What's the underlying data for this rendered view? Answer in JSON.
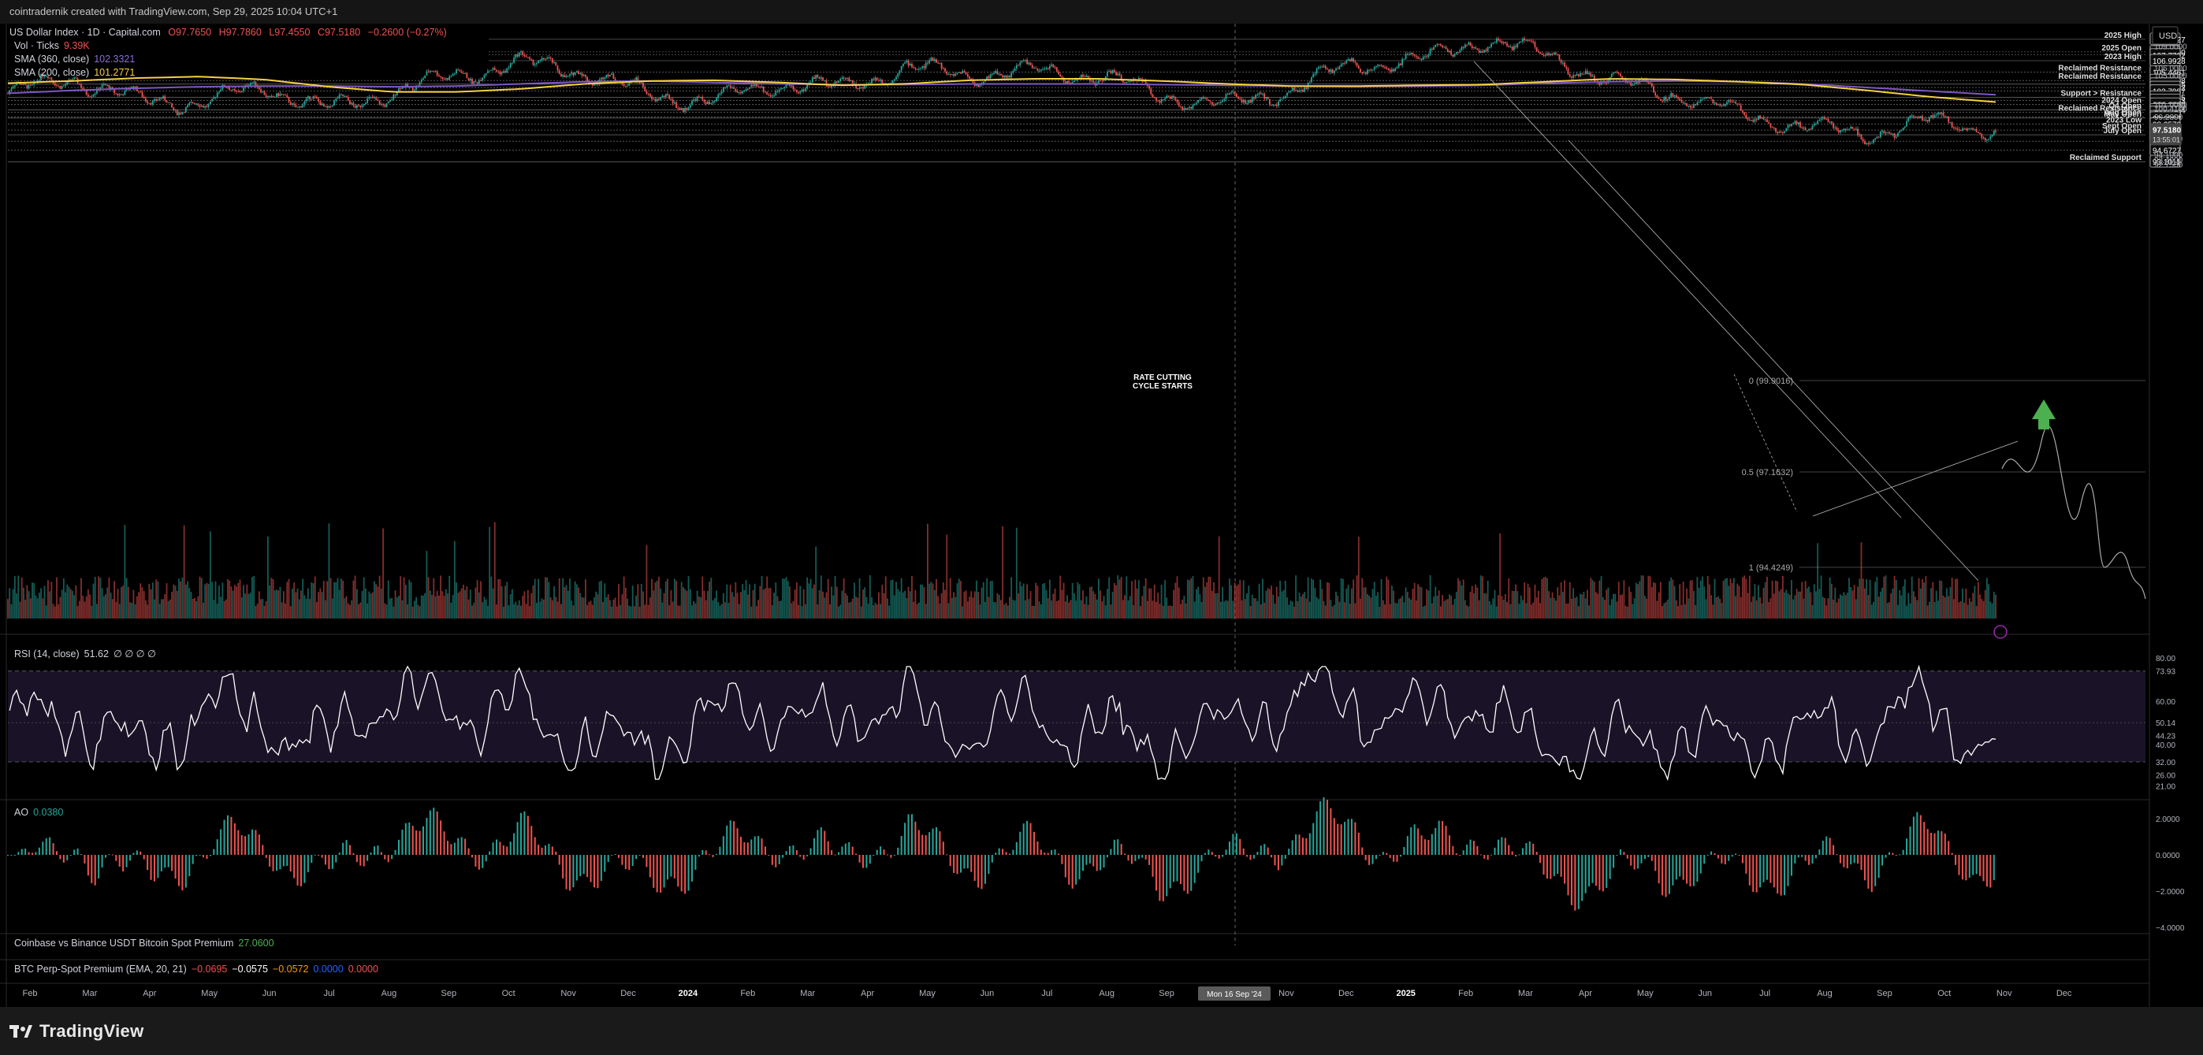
{
  "header": {
    "attribution": "cointradernik created with TradingView.com, Sep 29, 2025 10:04 UTC+1"
  },
  "legend": {
    "title": "US Dollar Index · 1D · Capital.com",
    "ohlc": {
      "o": "O97.7650",
      "h": "H97.7860",
      "l": "L97.4550",
      "c": "C97.5180",
      "chg": "−0.2600 (−0.27%)"
    },
    "vol": {
      "label": "Vol · Ticks",
      "value": "9.39K"
    },
    "sma360": {
      "label": "SMA (360, close)",
      "value": "102.3321"
    },
    "sma200": {
      "label": "SMA (200, close)",
      "value": "101.2771"
    }
  },
  "currency": "USD",
  "rsi_legend": {
    "label": "RSI (14, close)",
    "value": "51.62",
    "extras": "∅ ∅ ∅ ∅"
  },
  "ao_legend": {
    "label": "AO",
    "value": "0.0380"
  },
  "premium_legend": {
    "label": "Coinbase vs Binance USDT Bitcoin Spot Premium",
    "value": "27.0600"
  },
  "btc_legend": {
    "label": "BTC Perp-Spot Premium (EMA, 20, 21)",
    "v1": "−0.0695",
    "v2": "−0.0575",
    "v3": "−0.0572",
    "v4": "0.0000",
    "v5": "0.0000"
  },
  "colors": {
    "bull": "#26a69a",
    "bear": "#ef5350",
    "sma360": "#7e57c2",
    "sma200": "#f5d142",
    "rsi": "#ffffff",
    "accent": "#4caf50",
    "purple": "#9c27b0"
  },
  "footer": {
    "brand": "TradingView"
  },
  "annotations": {
    "rate_cutting_line1": "RATE CUTTING",
    "rate_cutting_line2": "CYCLE STARTS",
    "fib_0": "0 (99.9016)",
    "fib_05": "0.5 (97.1632)",
    "fib_1": "1 (94.4249)",
    "crosshair_date": "Mon 16 Sep '24"
  },
  "chart_data": {
    "type": "candlestick",
    "symbol": "US Dollar Index",
    "timeframe": "1D",
    "x_axis_labels": [
      "Feb",
      "Mar",
      "Apr",
      "May",
      "Jun",
      "Jul",
      "Aug",
      "Sep",
      "Oct",
      "Nov",
      "Dec",
      "2024",
      "Feb",
      "Mar",
      "Apr",
      "May",
      "Jun",
      "Jul",
      "Aug",
      "Sep",
      "Oct",
      "Nov",
      "Dec",
      "2025",
      "Feb",
      "Mar",
      "Apr",
      "May",
      "Jun",
      "Jul",
      "Aug",
      "Sep",
      "Oct",
      "Nov",
      "Dec"
    ],
    "y_axis_price_ticks": [
      "109.0000",
      "106.0000",
      "105.0000",
      "101.0000",
      "100.4100",
      "99.2800",
      "96.3000",
      "94.1000",
      "93.4000",
      "92.7500"
    ],
    "horizontal_levels": [
      {
        "label": "2025 High",
        "value": 109.9327
      },
      {
        "label": "2025 Open",
        "value": 108.2
      },
      {
        "label": "",
        "value": 107.7792
      },
      {
        "label": "2023 High",
        "value": 106.9928
      },
      {
        "label": "Reclaimed Resistance",
        "value": 105.4461
      },
      {
        "label": "Reclaimed Resistance",
        "value": 104.2598
      },
      {
        "label": "",
        "value": 103.7635
      },
      {
        "label": "",
        "value": 103.2992
      },
      {
        "label": "",
        "value": 102.7987
      },
      {
        "label": "Support > Resistance",
        "value": 101.9685
      },
      {
        "label": "",
        "value": 101.5163
      },
      {
        "label": "2024 Open",
        "value": 101.0
      },
      {
        "label": "Q4 Open",
        "value": 100.2194
      },
      {
        "label": "Reclaimed Resistance",
        "value": 99.87
      },
      {
        "label": "Aug Open",
        "value": 99.28
      },
      {
        "label": "May Open",
        "value": 99.0967
      },
      {
        "label": "2023 Low",
        "value": 98.2579
      },
      {
        "label": "Sept Open",
        "value": 97.4465
      },
      {
        "label": "July Open",
        "value": 96.7989
      },
      {
        "label": "",
        "value": 95.9113
      },
      {
        "label": "",
        "value": 94.6727
      },
      {
        "label": "Reclaimed Support",
        "value": 93.1011
      }
    ],
    "last_price": {
      "value": 97.518,
      "countdown": "13:55:01"
    },
    "price_path_monthly": [
      {
        "x": "Feb 2023",
        "y": 102.5
      },
      {
        "x": "Mar 2023",
        "y": 104.6
      },
      {
        "x": "Apr 2023",
        "y": 101.6
      },
      {
        "x": "May 2023",
        "y": 101.2
      },
      {
        "x": "Jun 2023",
        "y": 103.4
      },
      {
        "x": "Jul 2023",
        "y": 100.2
      },
      {
        "x": "Aug 2023",
        "y": 102.7
      },
      {
        "x": "Sep 2023",
        "y": 105.0
      },
      {
        "x": "Oct 2023",
        "y": 106.7
      },
      {
        "x": "Nov 2023",
        "y": 105.5
      },
      {
        "x": "Dec 2023",
        "y": 102.2
      },
      {
        "x": "Jan 2024",
        "y": 101.4
      },
      {
        "x": "Feb 2024",
        "y": 103.9
      },
      {
        "x": "Mar 2024",
        "y": 103.3
      },
      {
        "x": "Apr 2024",
        "y": 106.0
      },
      {
        "x": "May 2024",
        "y": 105.1
      },
      {
        "x": "Jun 2024",
        "y": 105.5
      },
      {
        "x": "Jul 2024",
        "y": 105.0
      },
      {
        "x": "Aug 2024",
        "y": 102.2
      },
      {
        "x": "Sep 2024",
        "y": 100.8
      },
      {
        "x": "Oct 2024",
        "y": 103.0
      },
      {
        "x": "Nov 2024",
        "y": 106.5
      },
      {
        "x": "Dec 2024",
        "y": 107.0
      },
      {
        "x": "Jan 2025",
        "y": 109.9
      },
      {
        "x": "Feb 2025",
        "y": 107.8
      },
      {
        "x": "Mar 2025",
        "y": 104.0
      },
      {
        "x": "Apr 2025",
        "y": 102.5
      },
      {
        "x": "May 2025",
        "y": 99.7
      },
      {
        "x": "Jun 2025",
        "y": 98.0
      },
      {
        "x": "Jul 2025",
        "y": 96.8
      },
      {
        "x": "Aug 2025",
        "y": 98.8
      },
      {
        "x": "Sep 2025",
        "y": 97.5
      }
    ],
    "sma200_monthly": [
      103.9,
      104.2,
      104.6,
      104.8,
      104.4,
      103.4,
      102.7,
      102.7,
      103.1,
      103.8,
      104.2,
      104.3,
      104.0,
      103.6,
      103.8,
      104.3,
      104.5,
      104.5,
      104.2,
      103.8,
      103.5,
      103.5,
      103.6,
      103.7,
      104.1,
      104.5,
      104.4,
      104.1,
      103.7,
      102.9,
      102.0,
      101.3
    ],
    "sma360_monthly": [
      102.5,
      102.9,
      103.2,
      103.4,
      103.5,
      103.5,
      103.4,
      103.5,
      103.8,
      104.1,
      104.2,
      104.0,
      103.8,
      103.7,
      103.7,
      103.8,
      103.8,
      103.8,
      103.7,
      103.6,
      103.5,
      103.4,
      103.5,
      103.6,
      103.9,
      104.1,
      104.2,
      104.1,
      103.8,
      103.3,
      102.8,
      102.3
    ],
    "rsi": {
      "current": 51.62,
      "axis_ticks": [
        "80.00",
        "73.93",
        "60.00",
        "50.14",
        "44.23",
        "40.00",
        "32.00",
        "26.00",
        "21.00"
      ]
    },
    "ao": {
      "current": 0.038,
      "axis_ticks": [
        "2.0000",
        "0.0000",
        "−2.0000",
        "−4.0000"
      ]
    }
  }
}
